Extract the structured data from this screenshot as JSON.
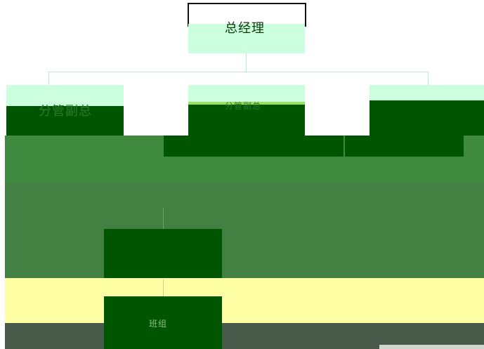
{
  "root": {
    "label": "总经理"
  },
  "level2": [
    {
      "label": "分管副总"
    },
    {
      "label": "分管副总"
    },
    {
      "label": ""
    }
  ],
  "department": {
    "label": ""
  },
  "unit": {
    "label": "班组"
  },
  "colors": {
    "light_green": "#ccffdd",
    "dark_green": "#005500",
    "mid_green": "#3f8a3f",
    "medium_green": "#428142",
    "pale_yellow": "#ffffa6",
    "gray_green": "#4a5a4a",
    "connector": "#b9ead0",
    "lime": "#9be05a"
  }
}
